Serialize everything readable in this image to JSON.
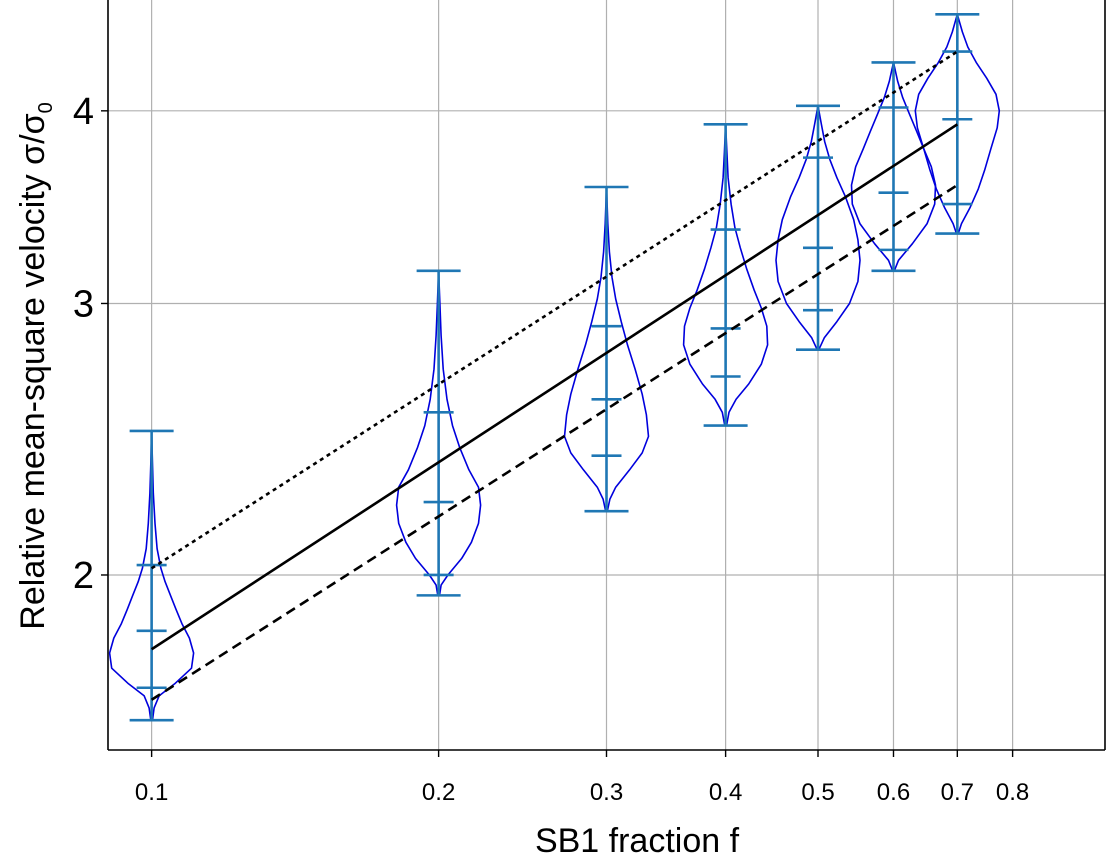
{
  "chart_data": {
    "type": "violin",
    "xscale": "log",
    "yscale": "log",
    "xlim": [
      0.09,
      1.0
    ],
    "ylim": [
      1.54,
      4.72
    ],
    "xticks": [
      0.1,
      0.2,
      0.3,
      0.4,
      0.5,
      0.6,
      0.7,
      0.8
    ],
    "xtick_labels": [
      "0.1",
      "0.2",
      "0.3",
      "0.4",
      "0.5",
      "0.6",
      "0.7",
      "0.8"
    ],
    "yticks": [
      2,
      3,
      4
    ],
    "ytick_labels": [
      "2",
      "3",
      "4"
    ],
    "xlabel": "SB1 fraction f",
    "ylabel": "Relative mean-square velocity σ/σ",
    "ylabel_sub": "0",
    "grid": true,
    "colors": {
      "violin_edge": "#0000dd",
      "errorbar": "#1f77b4",
      "fit_line": "#000000"
    },
    "violins": [
      {
        "x": 0.1,
        "min": 1.61,
        "max": 2.48,
        "p_low": 1.69,
        "median": 1.84,
        "p_high": 2.03,
        "mode": 1.81,
        "min_whisker_top": 2.03,
        "halfwidth": 0.42,
        "profile": [
          [
            1.61,
            0.02
          ],
          [
            1.64,
            0.06
          ],
          [
            1.67,
            0.18
          ],
          [
            1.7,
            0.55
          ],
          [
            1.74,
            0.95
          ],
          [
            1.78,
            1.0
          ],
          [
            1.82,
            0.9
          ],
          [
            1.86,
            0.72
          ],
          [
            1.9,
            0.58
          ],
          [
            1.94,
            0.45
          ],
          [
            1.98,
            0.32
          ],
          [
            2.02,
            0.22
          ],
          [
            2.08,
            0.13
          ],
          [
            2.16,
            0.08
          ],
          [
            2.26,
            0.04
          ],
          [
            2.36,
            0.02
          ],
          [
            2.48,
            0.0
          ]
        ]
      },
      {
        "x": 0.2,
        "min": 1.94,
        "max": 3.15,
        "p_low": 2.0,
        "median": 2.23,
        "p_high": 2.55,
        "halfwidth": 0.42,
        "profile": [
          [
            1.94,
            0.02
          ],
          [
            1.97,
            0.06
          ],
          [
            2.0,
            0.22
          ],
          [
            2.05,
            0.55
          ],
          [
            2.1,
            0.78
          ],
          [
            2.16,
            0.95
          ],
          [
            2.22,
            1.0
          ],
          [
            2.28,
            0.95
          ],
          [
            2.34,
            0.72
          ],
          [
            2.42,
            0.5
          ],
          [
            2.5,
            0.33
          ],
          [
            2.6,
            0.2
          ],
          [
            2.72,
            0.11
          ],
          [
            2.86,
            0.06
          ],
          [
            3.0,
            0.03
          ],
          [
            3.15,
            0.0
          ]
        ]
      },
      {
        "x": 0.3,
        "min": 2.2,
        "max": 3.57,
        "p_low": 2.39,
        "median": 2.6,
        "p_high": 2.9,
        "halfwidth": 0.42,
        "profile": [
          [
            2.2,
            0.02
          ],
          [
            2.24,
            0.08
          ],
          [
            2.28,
            0.22
          ],
          [
            2.34,
            0.55
          ],
          [
            2.4,
            0.85
          ],
          [
            2.46,
            1.0
          ],
          [
            2.54,
            0.95
          ],
          [
            2.62,
            0.85
          ],
          [
            2.72,
            0.68
          ],
          [
            2.82,
            0.5
          ],
          [
            2.92,
            0.35
          ],
          [
            3.02,
            0.22
          ],
          [
            3.12,
            0.13
          ],
          [
            3.24,
            0.07
          ],
          [
            3.38,
            0.03
          ],
          [
            3.57,
            0.0
          ]
        ]
      },
      {
        "x": 0.4,
        "min": 2.5,
        "max": 3.92,
        "p_low": 2.69,
        "median": 2.89,
        "p_high": 3.35,
        "halfwidth": 0.42,
        "profile": [
          [
            2.5,
            0.02
          ],
          [
            2.55,
            0.08
          ],
          [
            2.6,
            0.25
          ],
          [
            2.66,
            0.55
          ],
          [
            2.74,
            0.85
          ],
          [
            2.82,
            1.0
          ],
          [
            2.9,
            0.98
          ],
          [
            2.98,
            0.85
          ],
          [
            3.06,
            0.68
          ],
          [
            3.16,
            0.5
          ],
          [
            3.26,
            0.35
          ],
          [
            3.36,
            0.22
          ],
          [
            3.48,
            0.13
          ],
          [
            3.62,
            0.06
          ],
          [
            3.76,
            0.03
          ],
          [
            3.92,
            0.0
          ]
        ]
      },
      {
        "x": 0.5,
        "min": 2.8,
        "max": 4.03,
        "p_low": 2.97,
        "median": 3.26,
        "p_high": 3.73,
        "halfwidth": 0.42,
        "profile": [
          [
            2.8,
            0.02
          ],
          [
            2.85,
            0.15
          ],
          [
            2.92,
            0.45
          ],
          [
            3.0,
            0.75
          ],
          [
            3.1,
            0.95
          ],
          [
            3.2,
            1.0
          ],
          [
            3.3,
            0.95
          ],
          [
            3.4,
            0.85
          ],
          [
            3.52,
            0.65
          ],
          [
            3.62,
            0.45
          ],
          [
            3.72,
            0.28
          ],
          [
            3.82,
            0.16
          ],
          [
            3.92,
            0.08
          ],
          [
            4.03,
            0.0
          ]
        ]
      },
      {
        "x": 0.6,
        "min": 3.15,
        "max": 4.3,
        "p_low": 3.25,
        "median": 3.54,
        "p_high": 4.02,
        "halfwidth": 0.42,
        "profile": [
          [
            3.15,
            0.02
          ],
          [
            3.2,
            0.12
          ],
          [
            3.28,
            0.45
          ],
          [
            3.38,
            0.8
          ],
          [
            3.48,
            0.98
          ],
          [
            3.58,
            1.0
          ],
          [
            3.68,
            0.9
          ],
          [
            3.78,
            0.72
          ],
          [
            3.88,
            0.55
          ],
          [
            3.98,
            0.38
          ],
          [
            4.08,
            0.22
          ],
          [
            4.18,
            0.1
          ],
          [
            4.3,
            0.0
          ]
        ]
      },
      {
        "x": 0.7,
        "min": 3.33,
        "max": 4.62,
        "p_low": 3.48,
        "median": 3.95,
        "p_high": 4.37,
        "halfwidth": 0.42,
        "profile": [
          [
            3.33,
            0.02
          ],
          [
            3.38,
            0.1
          ],
          [
            3.46,
            0.3
          ],
          [
            3.56,
            0.5
          ],
          [
            3.66,
            0.65
          ],
          [
            3.78,
            0.8
          ],
          [
            3.9,
            0.95
          ],
          [
            4.0,
            1.0
          ],
          [
            4.1,
            0.92
          ],
          [
            4.2,
            0.7
          ],
          [
            4.3,
            0.45
          ],
          [
            4.4,
            0.25
          ],
          [
            4.5,
            0.12
          ],
          [
            4.62,
            0.0
          ]
        ]
      }
    ],
    "fit_lines": [
      {
        "style": "solid",
        "x": [
          0.1,
          0.7
        ],
        "y": [
          1.79,
          3.92
        ]
      },
      {
        "style": "dotted",
        "x": [
          0.1,
          0.7
        ],
        "y": [
          2.02,
          4.37
        ]
      },
      {
        "style": "dashed",
        "x": [
          0.1,
          0.7
        ],
        "y": [
          1.66,
          3.58
        ]
      }
    ]
  }
}
